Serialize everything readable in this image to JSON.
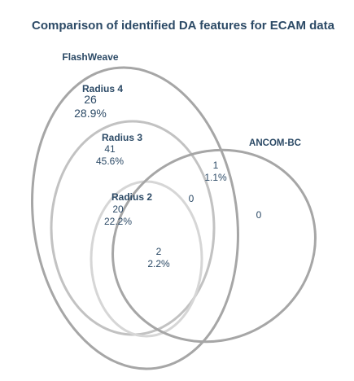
{
  "title": "Comparison of identified DA features for ECAM data",
  "sets": {
    "flashweave": "FlashWeave",
    "radius4": "Radius 4",
    "radius3": "Radius 3",
    "radius2": "Radius 2",
    "ancombc": "ANCOM-BC"
  },
  "regions": {
    "radius4_only": {
      "count": "26",
      "pct": "28.9%"
    },
    "radius3_only": {
      "count": "41",
      "pct": "45.6%"
    },
    "radius2_only": {
      "count": "20",
      "pct": "22.2%"
    },
    "radius2_ancom": {
      "count": "2",
      "pct": "2.2%"
    },
    "flashweave_ancom": {
      "count": "1",
      "pct": "1.1%"
    },
    "radius3_ancom": {
      "count": "0"
    },
    "ancom_only": {
      "count": "0"
    }
  },
  "colors": {
    "flashweave": "#a6a6a6",
    "radius4": "#a6a6a6",
    "radius3": "#c2c2c2",
    "radius2": "#d6d6d6",
    "ancombc": "#a6a6a6",
    "text": "#2c4a66"
  }
}
